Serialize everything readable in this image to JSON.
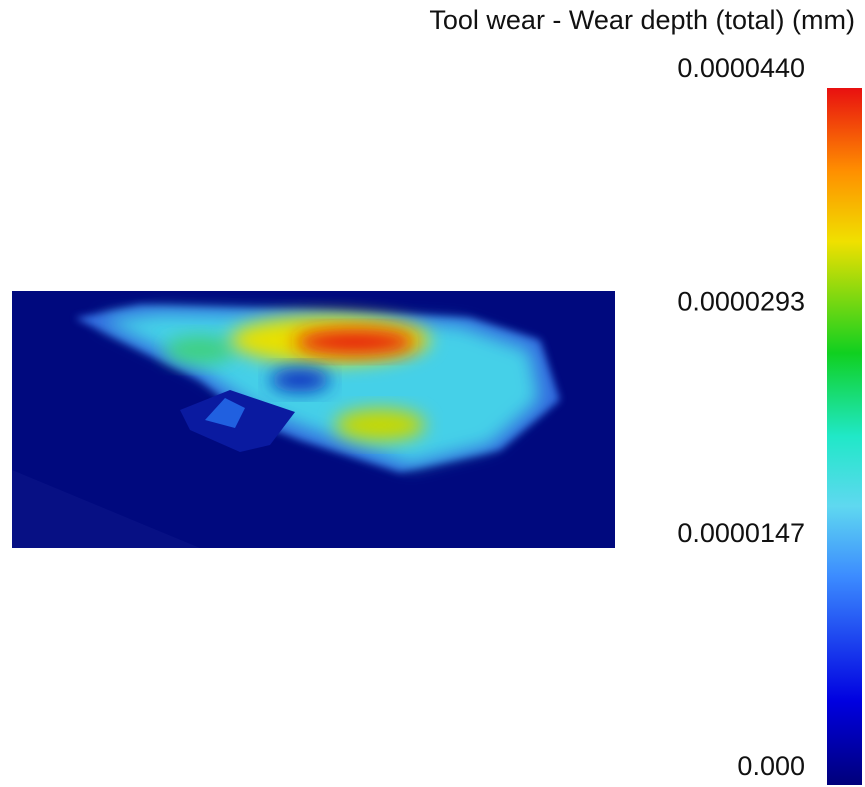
{
  "title": "Tool wear - Wear depth (total) (mm)",
  "colorbar": {
    "lim": [
      0,
      4.4e-05
    ],
    "ticks": [
      {
        "value": 4.4e-05,
        "label": "0.0000440"
      },
      {
        "value": 2.93e-05,
        "label": "0.0000293"
      },
      {
        "value": 1.47e-05,
        "label": "0.0000147"
      },
      {
        "value": 0,
        "label": "0.000"
      }
    ]
  }
}
